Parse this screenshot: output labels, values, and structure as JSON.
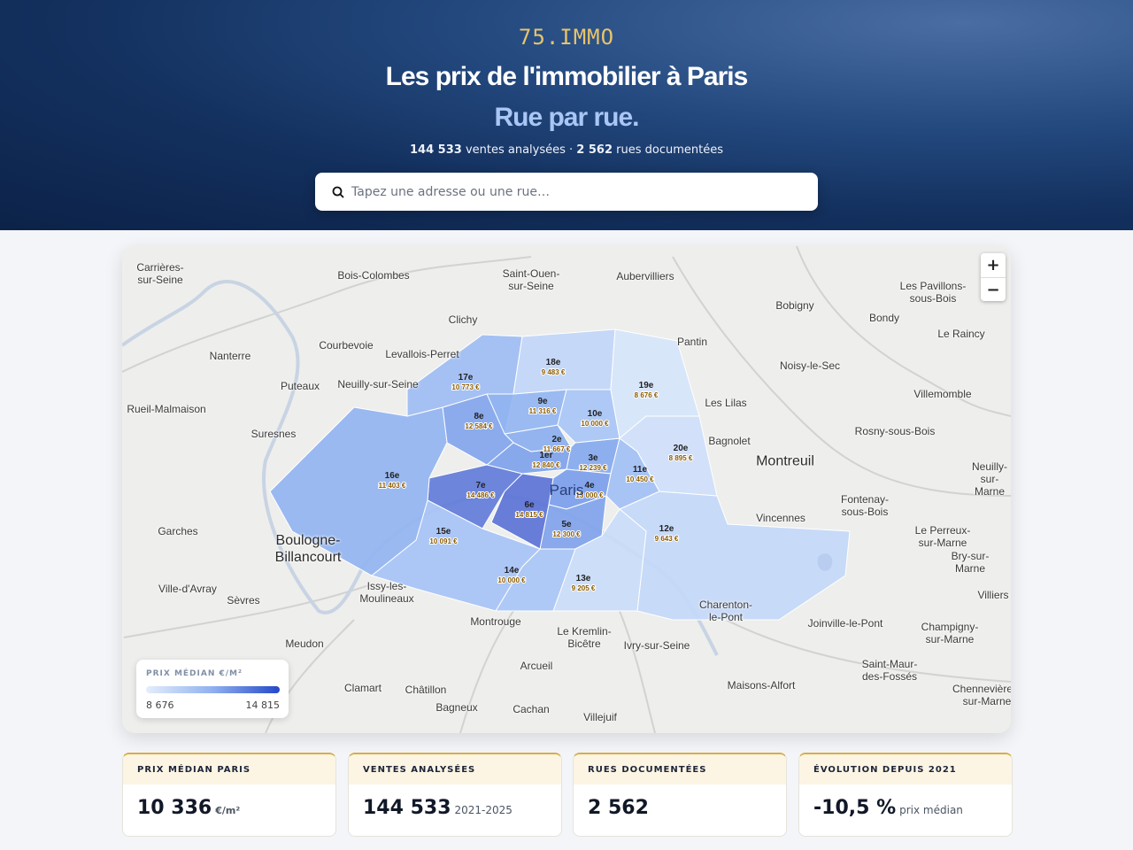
{
  "header": {
    "logo": "75.IMMO",
    "title": "Les prix de l'immobilier à Paris",
    "subtitle": "Rue par rue.",
    "stats": {
      "sales": "144 533",
      "sales_text": " ventes analysées · ",
      "streets": "2 562",
      "streets_text": " rues documentées"
    },
    "search_placeholder": "Tapez une adresse ou une rue…"
  },
  "map": {
    "zoom_in": "+",
    "zoom_out": "−",
    "paris_label": "Paris",
    "towns": [
      "Carrières-\nsur-Seine",
      "Bois-Colombes",
      "Saint-Ouen-\nsur-Seine",
      "Aubervilliers",
      "Bobigny",
      "Les Pavillons-\nsous-Bois",
      "Clichy",
      "Bondy",
      "Le Raincy",
      "Courbevoie",
      "Pantin",
      "Nanterre",
      "Levallois-Perret",
      "Noisy-le-Sec",
      "Puteaux",
      "Neuilly-sur-Seine",
      "Villemomble",
      "Rueil-Malmaison",
      "Les Lilas",
      "Rosny-sous-Bois",
      "Suresnes",
      "Bagnolet",
      "Montreuil",
      "Neuilly-\nsur-Marne",
      "Fontenay-\nsous-Bois",
      "Vincennes",
      "Garches",
      "Boulogne-\nBillancourt",
      "Le Perreux-\nsur-Marne",
      "Bry-sur-Marne",
      "Ville-d'Avray",
      "Issy-les-\nMoulineaux",
      "Sèvres",
      "Villiers",
      "Charenton-\nle-Pont",
      "Montrouge",
      "Le Kremlin-\nBicêtre",
      "Joinville-le-Pont",
      "Champigny-\nsur-Marne",
      "Meudon",
      "Ivry-sur-Seine",
      "Arcueil",
      "Saint-Maur-\ndes-Fossés",
      "Clamart",
      "Châtillon",
      "Maisons-Alfort",
      "Chennevières-\nsur-Marne",
      "Bagneux",
      "Cachan",
      "Villejuif"
    ],
    "arrondissements": [
      {
        "name": "1er",
        "price": "12 840 €",
        "color": "#7fa2ec"
      },
      {
        "name": "2e",
        "price": "11 667 €",
        "color": "#8cafef"
      },
      {
        "name": "3e",
        "price": "12 239 €",
        "color": "#86a9ee"
      },
      {
        "name": "4e",
        "price": "13 000 €",
        "color": "#7b9eeb"
      },
      {
        "name": "5e",
        "price": "12 300 €",
        "color": "#80a3ec"
      },
      {
        "name": "6e",
        "price": "14 815 €",
        "color": "#5b73d6"
      },
      {
        "name": "7e",
        "price": "14 486 €",
        "color": "#627cd9"
      },
      {
        "name": "8e",
        "price": "12 584 €",
        "color": "#82a5ed"
      },
      {
        "name": "9e",
        "price": "11 316 €",
        "color": "#93b5f1"
      },
      {
        "name": "10e",
        "price": "10 000 €",
        "color": "#a8c5f5"
      },
      {
        "name": "11e",
        "price": "10 450 €",
        "color": "#a2c0f4"
      },
      {
        "name": "12e",
        "price": "9 643 €",
        "color": "#c3d8f8"
      },
      {
        "name": "13e",
        "price": "9 205 €",
        "color": "#c9dcf9"
      },
      {
        "name": "14e",
        "price": "10 000 €",
        "color": "#a8c5f5"
      },
      {
        "name": "15e",
        "price": "10 091 €",
        "color": "#a6c3f5"
      },
      {
        "name": "16e",
        "price": "11 403 €",
        "color": "#92b4f1"
      },
      {
        "name": "17e",
        "price": "10 773 €",
        "color": "#9ebdf3"
      },
      {
        "name": "18e",
        "price": "9 483 €",
        "color": "#c1d6f8"
      },
      {
        "name": "19e",
        "price": "8 676 €",
        "color": "#d6e5fb"
      },
      {
        "name": "20e",
        "price": "8 895 €",
        "color": "#cfe0fa"
      }
    ],
    "legend": {
      "title": "PRIX MÉDIAN €/M²",
      "min": "8 676",
      "max": "14 815"
    }
  },
  "cards": [
    {
      "label": "PRIX MÉDIAN PARIS",
      "value": "10 336",
      "unit": "€/m²"
    },
    {
      "label": "VENTES ANALYSÉES",
      "value": "144 533",
      "note": "2021-2025"
    },
    {
      "label": "RUES DOCUMENTÉES",
      "value": "2 562"
    },
    {
      "label": "ÉVOLUTION DEPUIS 2021",
      "value": "-10,5 %",
      "note": "prix médian"
    }
  ]
}
